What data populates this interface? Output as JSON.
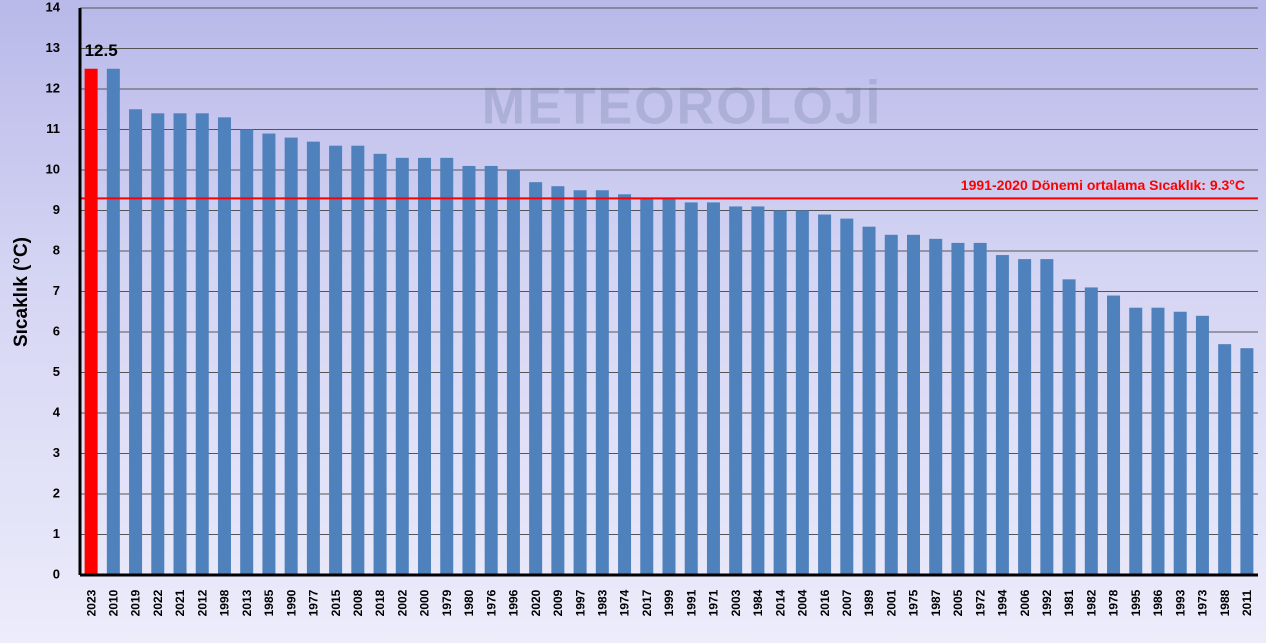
{
  "chart_data": {
    "type": "bar",
    "y_axis_label": "Sıcaklık (°C)",
    "watermark": "METEOROLOJİ",
    "categories": [
      "2023",
      "2010",
      "2019",
      "2022",
      "2021",
      "2012",
      "1998",
      "2013",
      "1985",
      "1990",
      "1977",
      "2015",
      "2008",
      "2018",
      "2002",
      "2000",
      "1979",
      "1980",
      "1976",
      "1996",
      "2020",
      "2009",
      "1997",
      "1983",
      "1974",
      "2017",
      "1999",
      "1991",
      "1971",
      "2003",
      "1984",
      "2014",
      "2004",
      "2016",
      "2007",
      "1989",
      "2001",
      "1975",
      "1987",
      "2005",
      "1972",
      "1994",
      "2006",
      "1992",
      "1981",
      "1982",
      "1978",
      "1995",
      "1986",
      "1993",
      "1973",
      "1988",
      "2011"
    ],
    "values": [
      12.5,
      12.5,
      11.5,
      11.4,
      11.4,
      11.4,
      11.3,
      11.0,
      10.9,
      10.8,
      10.7,
      10.6,
      10.6,
      10.4,
      10.3,
      10.3,
      10.3,
      10.1,
      10.1,
      10.0,
      9.7,
      9.6,
      9.5,
      9.5,
      9.4,
      9.3,
      9.3,
      9.2,
      9.2,
      9.1,
      9.1,
      9.0,
      9.0,
      8.9,
      8.8,
      8.6,
      8.4,
      8.4,
      8.3,
      8.2,
      8.2,
      7.9,
      7.8,
      7.8,
      7.3,
      7.1,
      6.9,
      6.6,
      6.6,
      6.5,
      6.4,
      5.7,
      5.6
    ],
    "value_labels": [
      "12.5",
      null,
      null,
      null,
      null,
      null,
      null,
      null,
      null,
      null,
      null,
      null,
      null,
      null,
      null,
      null,
      null,
      null,
      null,
      null,
      null,
      null,
      null,
      null,
      null,
      null,
      null,
      null,
      null,
      null,
      null,
      null,
      null,
      null,
      null,
      null,
      null,
      null,
      null,
      null,
      null,
      null,
      null,
      null,
      null,
      null,
      null,
      null,
      null,
      null,
      null,
      null,
      null
    ],
    "colors": [
      "#ff0000",
      "#4f81bd",
      "#4f81bd",
      "#4f81bd",
      "#4f81bd",
      "#4f81bd",
      "#4f81bd",
      "#4f81bd",
      "#4f81bd",
      "#4f81bd",
      "#4f81bd",
      "#4f81bd",
      "#4f81bd",
      "#4f81bd",
      "#4f81bd",
      "#4f81bd",
      "#4f81bd",
      "#4f81bd",
      "#4f81bd",
      "#4f81bd",
      "#4f81bd",
      "#4f81bd",
      "#4f81bd",
      "#4f81bd",
      "#4f81bd",
      "#4f81bd",
      "#4f81bd",
      "#4f81bd",
      "#4f81bd",
      "#4f81bd",
      "#4f81bd",
      "#4f81bd",
      "#4f81bd",
      "#4f81bd",
      "#4f81bd",
      "#4f81bd",
      "#4f81bd",
      "#4f81bd",
      "#4f81bd",
      "#4f81bd",
      "#4f81bd",
      "#4f81bd",
      "#4f81bd",
      "#4f81bd",
      "#4f81bd",
      "#4f81bd",
      "#4f81bd",
      "#4f81bd",
      "#4f81bd",
      "#4f81bd",
      "#4f81bd",
      "#4f81bd",
      "#4f81bd"
    ],
    "reference_line": {
      "value": 9.3,
      "label": "1991-2020 Dönemi ortalama Sıcaklık: 9.3°C",
      "color": "#ff0000"
    },
    "ylim": [
      0,
      14
    ],
    "yticks": [
      0,
      1,
      2,
      3,
      4,
      5,
      6,
      7,
      8,
      9,
      10,
      11,
      12,
      13,
      14
    ],
    "grid": true
  }
}
